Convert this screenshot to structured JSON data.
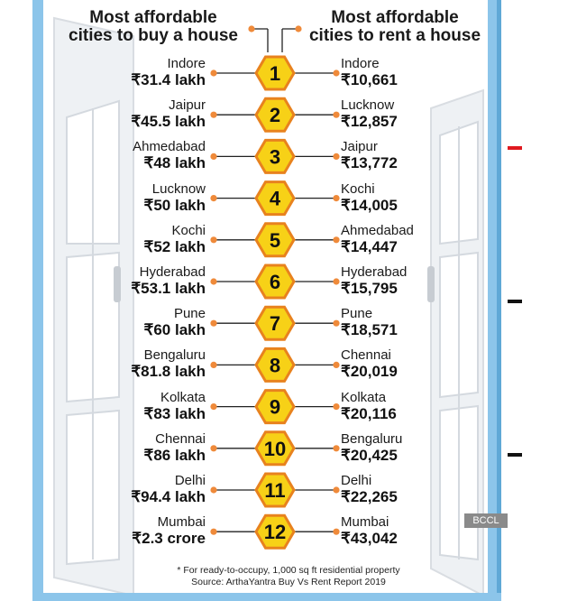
{
  "header": {
    "buy_title_line1": "Most affordable",
    "buy_title_line2": "cities to buy a house",
    "rent_title_line1": "Most affordable",
    "rent_title_line2": "cities to rent a house"
  },
  "rankings": [
    {
      "rank": "1",
      "buy_city": "Indore",
      "buy_price": "₹31.4 lakh",
      "rent_city": "Indore",
      "rent_price": "₹10,661"
    },
    {
      "rank": "2",
      "buy_city": "Jaipur",
      "buy_price": "₹45.5 lakh",
      "rent_city": "Lucknow",
      "rent_price": "₹12,857"
    },
    {
      "rank": "3",
      "buy_city": "Ahmedabad",
      "buy_price": "₹48 lakh",
      "rent_city": "Jaipur",
      "rent_price": "₹13,772"
    },
    {
      "rank": "4",
      "buy_city": "Lucknow",
      "buy_price": "₹50 lakh",
      "rent_city": "Kochi",
      "rent_price": "₹14,005"
    },
    {
      "rank": "5",
      "buy_city": "Kochi",
      "buy_price": "₹52 lakh",
      "rent_city": "Ahmedabad",
      "rent_price": "₹14,447"
    },
    {
      "rank": "6",
      "buy_city": "Hyderabad",
      "buy_price": "₹53.1 lakh",
      "rent_city": "Hyderabad",
      "rent_price": "₹15,795"
    },
    {
      "rank": "7",
      "buy_city": "Pune",
      "buy_price": "₹60 lakh",
      "rent_city": "Pune",
      "rent_price": "₹18,571"
    },
    {
      "rank": "8",
      "buy_city": "Bengaluru",
      "buy_price": "₹81.8 lakh",
      "rent_city": "Chennai",
      "rent_price": "₹20,019"
    },
    {
      "rank": "9",
      "buy_city": "Kolkata",
      "buy_price": "₹83 lakh",
      "rent_city": "Kolkata",
      "rent_price": "₹20,116"
    },
    {
      "rank": "10",
      "buy_city": "Chennai",
      "buy_price": "₹86 lakh",
      "rent_city": "Bengaluru",
      "rent_price": "₹20,425"
    },
    {
      "rank": "11",
      "buy_city": "Delhi",
      "buy_price": "₹94.4 lakh",
      "rent_city": "Delhi",
      "rent_price": "₹22,265"
    },
    {
      "rank": "12",
      "buy_city": "Mumbai",
      "buy_price": "₹2.3 crore",
      "rent_city": "Mumbai",
      "rent_price": "₹43,042"
    }
  ],
  "footnote": {
    "note": "* For ready-to-occupy, 1,000 sq ft residential property",
    "source": "Source: ArthaYantra Buy Vs Rent Report 2019"
  },
  "watermark": "BCCL",
  "colors": {
    "frame_blue": "#8cc5ea",
    "window_white": "#f2f4f6",
    "hexagon_fill": "#f7d117",
    "hexagon_border": "#e8821e",
    "connector_line": "#222222",
    "dot_orange": "#ef8a3a",
    "wall_mark_red": "#e0191f",
    "wall_mark_black": "#111111"
  }
}
